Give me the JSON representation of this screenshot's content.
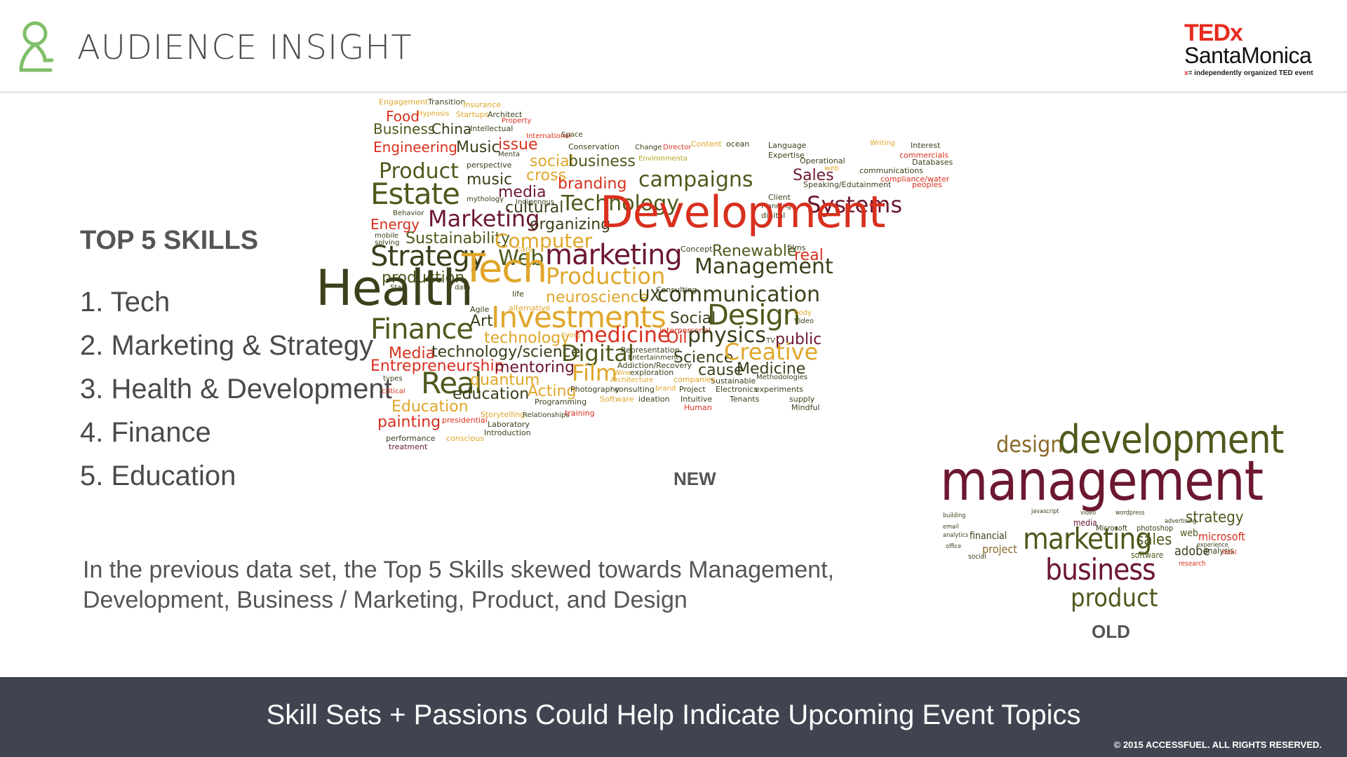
{
  "header": {
    "title": "AUDIENCE INSIGHT",
    "logo_icon": "person-outline-icon",
    "brand": {
      "name": "TEDx",
      "city": "SantaMonica",
      "tag_x": "x",
      "tagline": "= independently organized TED event"
    }
  },
  "skills": {
    "title": "TOP 5 SKILLS",
    "items": [
      "1. Tech",
      "2. Marketing & Strategy",
      "3. Health & Development",
      "4. Finance",
      "5. Education"
    ]
  },
  "note": "In the previous data set, the Top 5 Skills skewed towards Management, Development, Business / Marketing, Product, and Design",
  "captions": {
    "new": "NEW",
    "old": "OLD"
  },
  "cloud_new": [
    "Engagement",
    "Transition",
    "Insurance",
    "Food",
    "Hypnosis",
    "Startups",
    "Architect",
    "Property",
    "Business",
    "China",
    "Intellectual",
    "International",
    "Space",
    "Engineering",
    "Music",
    "issue",
    "Menta",
    "Conservation",
    "Change",
    "Director",
    "Content",
    "ocean",
    "Language",
    "Expertise",
    "Writing",
    "Interest",
    "commercials",
    "Product",
    "perspective",
    "social",
    "business",
    "Environmenta",
    "Operational",
    "Databases",
    "music",
    "cross",
    "web",
    "communications",
    "Estate",
    "media",
    "branding",
    "campaigns",
    "Sales",
    "compliance/water",
    "Indigenous",
    "Speaking/Edutainment",
    "peoples",
    "mythology",
    "cultural",
    "Technology",
    "Client",
    "Planning",
    "Systems",
    "Behavior",
    "digital",
    "Energy",
    "Marketing",
    "organizing",
    "Development",
    "mobile",
    "solving",
    "Sustainability",
    "Computer",
    "care",
    "Concept",
    "films",
    "Strategy",
    "Web",
    "marketing",
    "Renewable",
    "real",
    "production",
    "Management",
    "Start",
    "data",
    "Tech",
    "life",
    "Production",
    "Consulting",
    "Health",
    "Agile",
    "neuroscience",
    "UX",
    "communication",
    "Art",
    "alternative",
    "Social",
    "Design",
    "Investments",
    "interpersonal",
    "body",
    "Video",
    "Finance",
    "living",
    "medicine",
    "Oil",
    "physics",
    "TV",
    "public",
    "technology",
    "Media",
    "technology/science",
    "Digital",
    "Representation",
    "Entertainment",
    "Science",
    "Creative",
    "Entrepreneurship",
    "mentoring",
    "Addiction/Recovery",
    "cause",
    "Medicine",
    "Film",
    "Wine",
    "exploration",
    "Sustainable",
    "Methodologies",
    "types",
    "Real",
    "quantum",
    "Architecture",
    "companies",
    "Acting",
    "consulting",
    "brand",
    "Project",
    "Electronics",
    "experiments",
    "critical",
    "education",
    "Photography",
    "supply",
    "Education",
    "Programming",
    "Software",
    "ideation",
    "Intuitive",
    "Tenants",
    "Mindful",
    "Storytelling",
    "Relationships",
    "training",
    "Human",
    "painting",
    "presidential",
    "Laboratory",
    "Introduction",
    "performance",
    "conscious",
    "treatment"
  ],
  "cloud_old": [
    "design",
    "development",
    "management",
    "javascript",
    "video",
    "wordpress",
    "strategy",
    "building",
    "media",
    "Microsoft",
    "photoshop",
    "advertising",
    "email",
    "analytics",
    "financial",
    "web",
    "microsoft",
    "sales",
    "project",
    "marketing",
    "experience",
    "office",
    "social",
    "software",
    "adobe",
    "analysis",
    "html",
    "research",
    "business",
    "product"
  ],
  "footer": {
    "text": "Skill Sets + Passions Could Help Indicate Upcoming Event Topics",
    "copyright": "© 2015 ACCESSFUEL.  ALL RIGHTS RESERVED."
  },
  "colors": {
    "accent_green": "#7fbf6a",
    "ted_red": "#e62b1e",
    "footer_bg": "#3f4450",
    "cloud_red": "#d8301e",
    "cloud_olive": "#4d5a1c",
    "cloud_gold": "#e0a62a",
    "cloud_maroon": "#6c1830"
  }
}
